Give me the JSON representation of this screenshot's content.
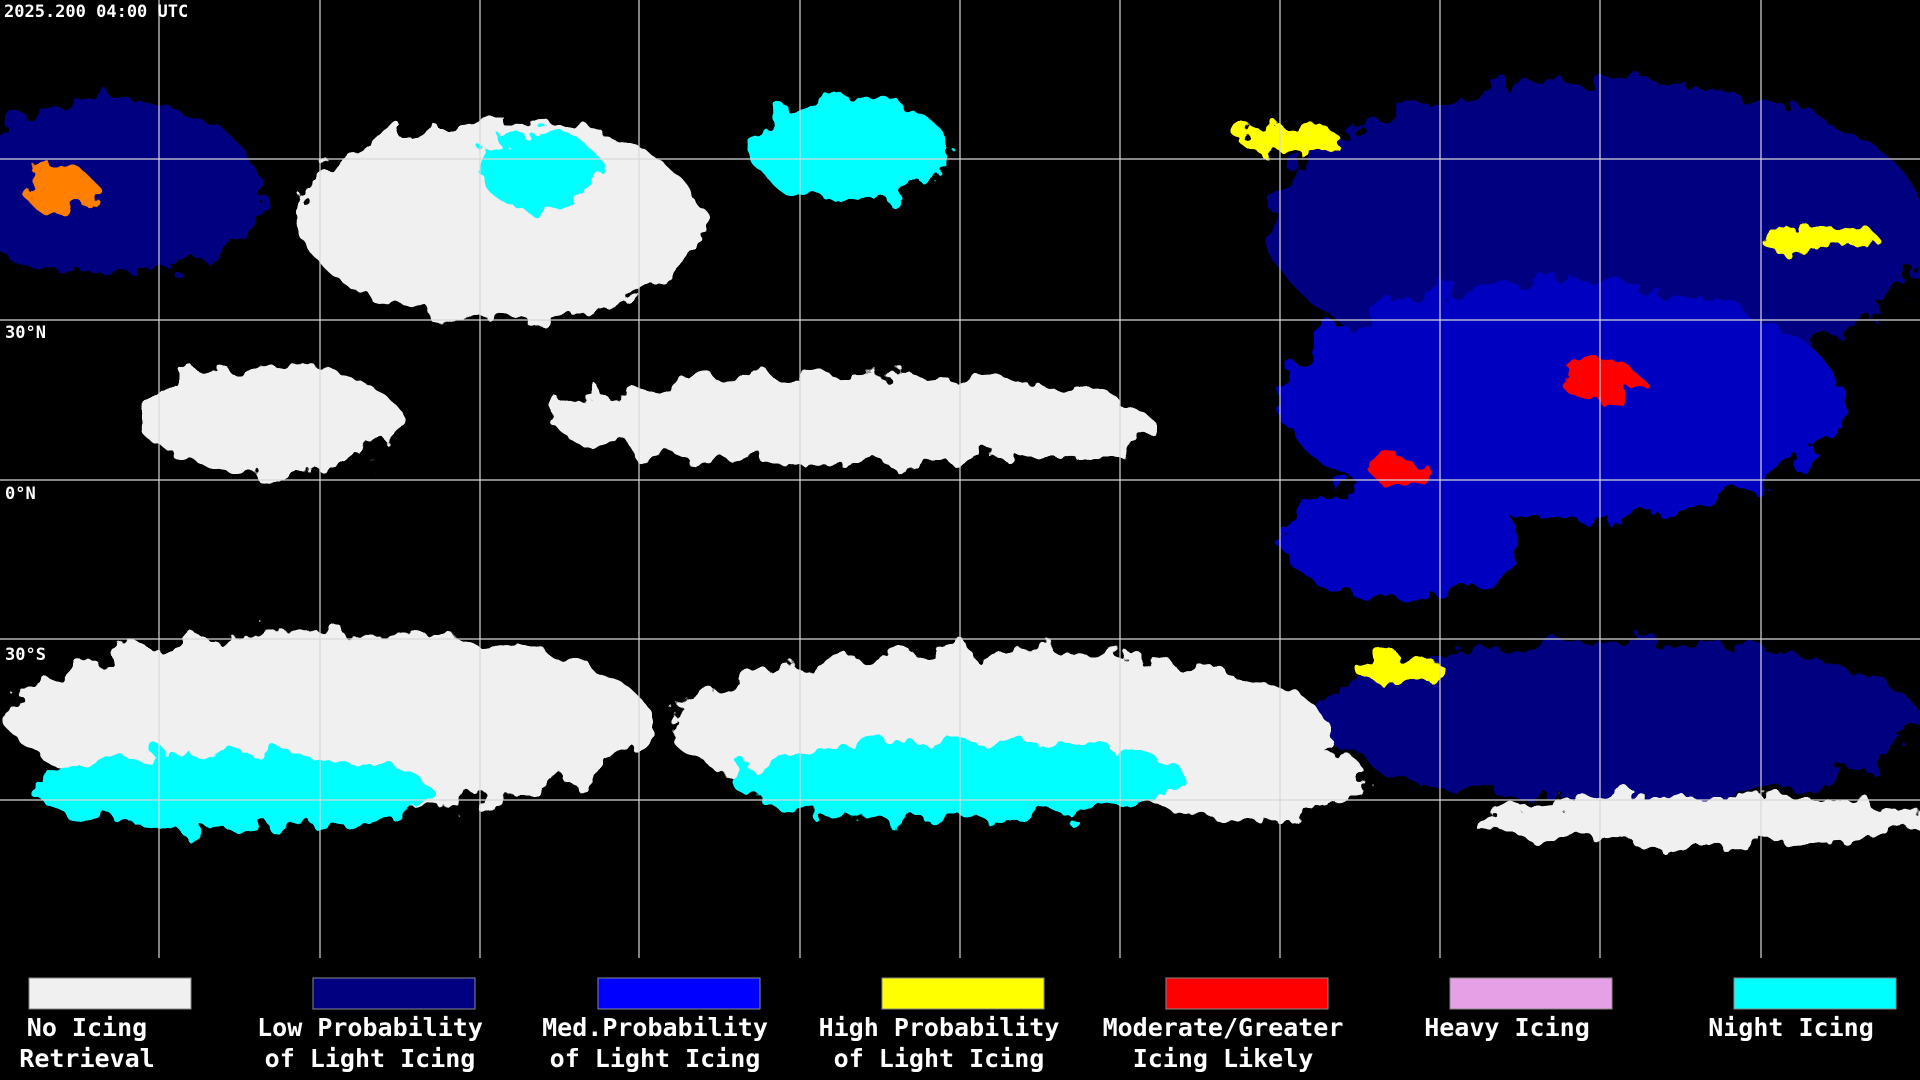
{
  "header": {
    "timestamp": "2025.200 04:00 UTC"
  },
  "latitude_labels": [
    "30°N",
    "0°N",
    "30°S"
  ],
  "legend": {
    "items": [
      {
        "lines": [
          "No Icing",
          "Retrieval"
        ],
        "color": "#f0f0f0"
      },
      {
        "lines": [
          "Low Probability",
          "of Light Icing"
        ],
        "color": "#000080"
      },
      {
        "lines": [
          "Med.Probability",
          "of Light Icing"
        ],
        "color": "#0000ff"
      },
      {
        "lines": [
          "High Probability",
          "of Light Icing"
        ],
        "color": "#ffff00"
      },
      {
        "lines": [
          "Moderate/Greater",
          "Icing Likely"
        ],
        "color": "#ff0000"
      },
      {
        "lines": [
          "Heavy Icing",
          ""
        ],
        "color": "#e6a0e6"
      },
      {
        "lines": [
          "Night Icing",
          ""
        ],
        "color": "#00ffff"
      }
    ]
  }
}
